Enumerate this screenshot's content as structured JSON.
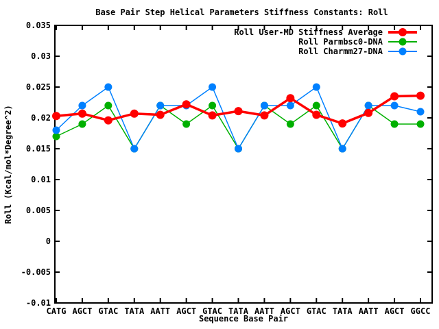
{
  "window": {
    "background": "#ffffff"
  },
  "chart_data": {
    "type": "line",
    "title": "Base Pair Step Helical Parameters Stiffness Constants: Roll",
    "xlabel": "Sequence Base Pair",
    "ylabel": "Roll (Kcal/mol*Degree^2)",
    "ylim": [
      -0.01,
      0.035
    ],
    "grid": false,
    "legend_position": "top-right-inside",
    "border_color": "#000000",
    "yticks": [
      {
        "value": 0.035,
        "label": "0.035"
      },
      {
        "value": 0.03,
        "label": "0.03"
      },
      {
        "value": 0.025,
        "label": "0.025"
      },
      {
        "value": 0.02,
        "label": "0.02"
      },
      {
        "value": 0.015,
        "label": "0.015"
      },
      {
        "value": 0.01,
        "label": "0.01"
      },
      {
        "value": 0.005,
        "label": "0.005"
      },
      {
        "value": 0,
        "label": "0"
      },
      {
        "value": -0.005,
        "label": "-0.005"
      },
      {
        "value": -0.01,
        "label": "-0.01"
      }
    ],
    "categories": [
      "CATG",
      "AGCT",
      "GTAC",
      "TATA",
      "AATT",
      "AGCT",
      "GTAC",
      "TATA",
      "AATT",
      "AGCT",
      "GTAC",
      "TATA",
      "AATT",
      "AGCT",
      "GGCC"
    ],
    "series": [
      {
        "name": "Roll User-MD Stiffness Average",
        "color": "#ff0000",
        "values": [
          0.0203,
          0.0207,
          0.0196,
          0.0207,
          0.0205,
          0.0222,
          0.0204,
          0.0211,
          0.0204,
          0.0232,
          0.0205,
          0.0191,
          0.0208,
          0.0235,
          0.0236
        ]
      },
      {
        "name": "Roll Parmbsc0-DNA",
        "color": "#00b000",
        "values": [
          0.017,
          0.019,
          0.022,
          0.015,
          0.022,
          0.019,
          0.022,
          0.015,
          0.022,
          0.019,
          0.022,
          0.015,
          0.022,
          0.019,
          0.019
        ]
      },
      {
        "name": "Roll Charmm27-DNA",
        "color": "#0080ff",
        "values": [
          0.018,
          0.022,
          0.025,
          0.015,
          0.022,
          0.022,
          0.025,
          0.015,
          0.022,
          0.022,
          0.025,
          0.015,
          0.022,
          0.022,
          0.021
        ]
      }
    ],
    "draw_order": [
      1,
      2,
      0
    ]
  }
}
